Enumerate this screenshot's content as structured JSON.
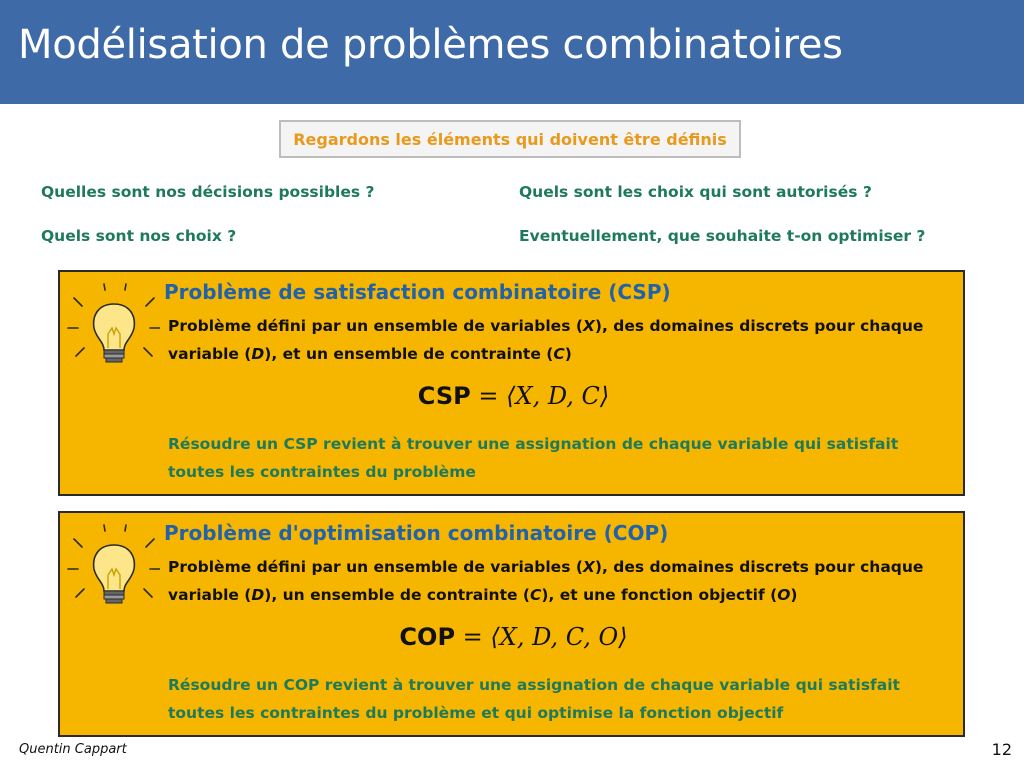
{
  "slide": {
    "title": "Modélisation de problèmes combinatoires",
    "subtitle": "Regardons les éléments qui doivent être définis",
    "questions": {
      "q1": "Quelles sont nos décisions possibles ?",
      "q2": "Quels sont nos choix ?",
      "q3": "Quels sont les choix qui sont autorisés ?",
      "q4": "Eventuellement, que souhaite t-on optimiser ?"
    },
    "csp": {
      "title": "Problème de satisfaction combinatoire (CSP)",
      "def_part1": "Problème défini par un ensemble de variables (",
      "var_x": "X",
      "def_part2": "), des domaines discrets pour chaque variable (",
      "var_d": "D",
      "def_part3": "), et un ensemble de contrainte (",
      "var_c": "C",
      "def_part4": ")",
      "formula_label": "CSP",
      "formula_math": "= ⟨X, D, C⟩",
      "result": "Résoudre un CSP revient à trouver une assignation de chaque variable qui satisfait toutes les contraintes du problème"
    },
    "cop": {
      "title": "Problème d'optimisation combinatoire (COP)",
      "def_part1": "Problème défini par un ensemble de variables (",
      "var_x": "X",
      "def_part2": "), des domaines discrets pour chaque variable (",
      "var_d": "D",
      "def_part3": "), un ensemble de contrainte (",
      "var_c": "C",
      "def_part4": "), et une fonction objectif (",
      "var_o": "O",
      "def_part5": ")",
      "formula_label": "COP",
      "formula_math": "= ⟨X, D, C, O⟩",
      "result": "Résoudre un COP revient à trouver une assignation de chaque variable qui satisfait toutes les contraintes du problème et qui optimise la fonction objectif"
    },
    "footer": {
      "author": "Quentin Cappart",
      "page": "12"
    }
  },
  "colors": {
    "title_bar": "#3e6aa8",
    "box_fill": "#f6b600",
    "box_title": "#2262a8",
    "green_text": "#1f7a5a",
    "orange_text": "#e89a1c"
  },
  "icons": [
    "lightbulb-icon"
  ]
}
